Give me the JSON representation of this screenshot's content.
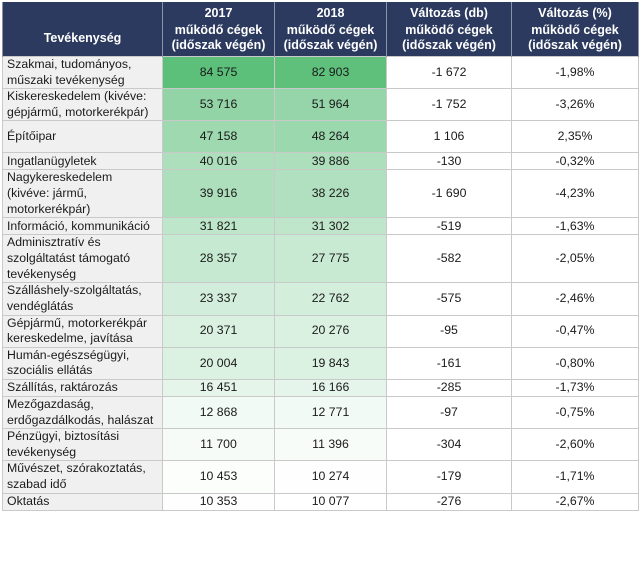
{
  "header": {
    "years": [
      "2017",
      "2018"
    ],
    "change_db": "Változás (db)",
    "change_pct": "Változás (%)",
    "activity": "Tevékenység",
    "sub_a": "működő cégek",
    "sub_b": "(időszak végén)"
  },
  "colors": {
    "header_bg": "#2b3a5e",
    "heat_max": "#5cbf7a",
    "heat_min": "#ffffff",
    "name_bg": "#f0f0f0"
  },
  "rows": [
    {
      "name": "Szakmai, tudományos, műszaki tevékenység",
      "v2017": "84 575",
      "v2018": "82 903",
      "diff": "-1 672",
      "pct": "-1,98%"
    },
    {
      "name": "Kiskereskedelem (kivéve: gépjármű, motorkerékpár)",
      "v2017": "53 716",
      "v2018": "51 964",
      "diff": "-1 752",
      "pct": "-3,26%"
    },
    {
      "name": "Építőipar",
      "v2017": "47 158",
      "v2018": "48 264",
      "diff": "1 106",
      "pct": "2,35%"
    },
    {
      "name": "Ingatlanügyletek",
      "v2017": "40 016",
      "v2018": "39 886",
      "diff": "-130",
      "pct": "-0,32%"
    },
    {
      "name": "Nagykereskedelem (kivéve: jármű, motorkerékpár)",
      "v2017": "39 916",
      "v2018": "38 226",
      "diff": "-1 690",
      "pct": "-4,23%"
    },
    {
      "name": "Információ, kommunikáció",
      "v2017": "31 821",
      "v2018": "31 302",
      "diff": "-519",
      "pct": "-1,63%"
    },
    {
      "name": "Adminisztratív és szolgáltatást támogató tevékenység",
      "v2017": "28 357",
      "v2018": "27 775",
      "diff": "-582",
      "pct": "-2,05%"
    },
    {
      "name": "Szálláshely-szolgáltatás, vendéglátás",
      "v2017": "23 337",
      "v2018": "22 762",
      "diff": "-575",
      "pct": "-2,46%"
    },
    {
      "name": "Gépjármű, motorkerékpár kereskedelme, javítása",
      "v2017": "20 371",
      "v2018": "20 276",
      "diff": "-95",
      "pct": "-0,47%"
    },
    {
      "name": "Humán-egészségügyi, szociális ellátás",
      "v2017": "20 004",
      "v2018": "19 843",
      "diff": "-161",
      "pct": "-0,80%"
    },
    {
      "name": "Szállítás, raktározás",
      "v2017": "16 451",
      "v2018": "16 166",
      "diff": "-285",
      "pct": "-1,73%"
    },
    {
      "name": "Mezőgazdaság, erdőgazdálkodás, halászat",
      "v2017": "12 868",
      "v2018": "12 771",
      "diff": "-97",
      "pct": "-0,75%"
    },
    {
      "name": "Pénzügyi, biztosítási tevékenység",
      "v2017": "11 700",
      "v2018": "11 396",
      "diff": "-304",
      "pct": "-2,60%"
    },
    {
      "name": "Művészet, szórakoztatás, szabad idő",
      "v2017": "10 453",
      "v2018": "10 274",
      "diff": "-179",
      "pct": "-1,71%"
    },
    {
      "name": "Oktatás",
      "v2017": "10 353",
      "v2018": "10 077",
      "diff": "-276",
      "pct": "-2,67%"
    }
  ]
}
